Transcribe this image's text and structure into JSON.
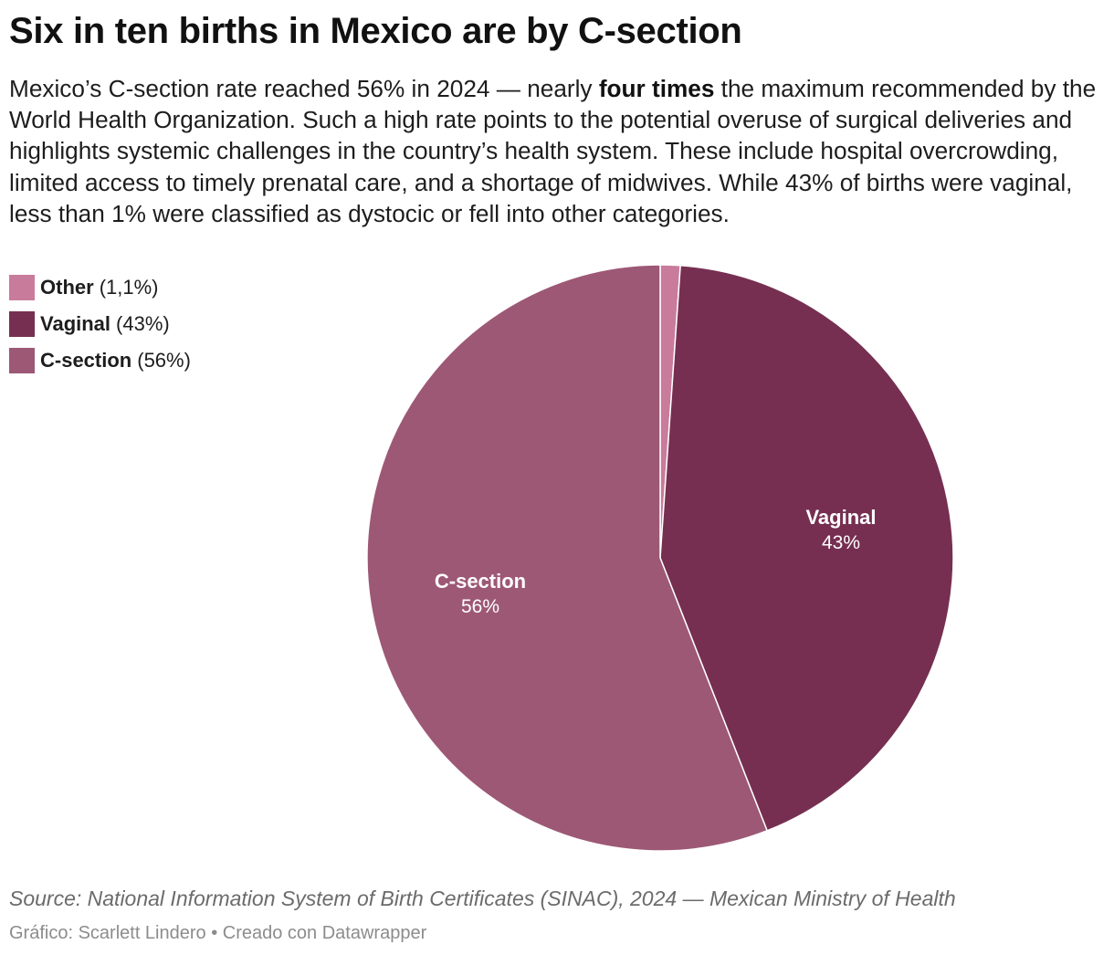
{
  "title": "Six in ten births in Mexico are by C-section",
  "description": {
    "before": "Mexico’s C-section rate reached 56% in 2024 — nearly ",
    "bold": "four times",
    "after": " the maximum recommended by the World Health Organization. Such a high rate points to the potential overuse of surgical deliveries and highlights systemic challenges in the country’s health system. These include hospital overcrowding, limited access to timely prenatal care, and a shortage of midwives. While 43% of births were vaginal, less than 1% were classified as dystocic or fell into other categories."
  },
  "legend": [
    {
      "name": "Other",
      "value_text": "(1,1%)",
      "color": "#c97b9c"
    },
    {
      "name": "Vaginal",
      "value_text": "(43%)",
      "color": "#762f51"
    },
    {
      "name": "C-section",
      "value_text": "(56%)",
      "color": "#9d5875"
    }
  ],
  "chart_data": {
    "type": "pie",
    "title": "Six in ten births in Mexico are by C-section",
    "slices": [
      {
        "name": "Other",
        "value": 1.1,
        "color": "#c97b9c",
        "label_value": ""
      },
      {
        "name": "Vaginal",
        "value": 43,
        "color": "#762f51",
        "label_value": "43%"
      },
      {
        "name": "C-section",
        "value": 56,
        "color": "#9d5875",
        "label_value": "56%"
      }
    ],
    "start": "12 o'clock",
    "direction": "clockwise",
    "legend_position": "top-left"
  },
  "footer": {
    "source": "Source: National Information System of Birth Certificates (SINAC), 2024 — Mexican Ministry of Health",
    "credit": "Gráfico: Scarlett Lindero • Creado con Datawrapper"
  }
}
